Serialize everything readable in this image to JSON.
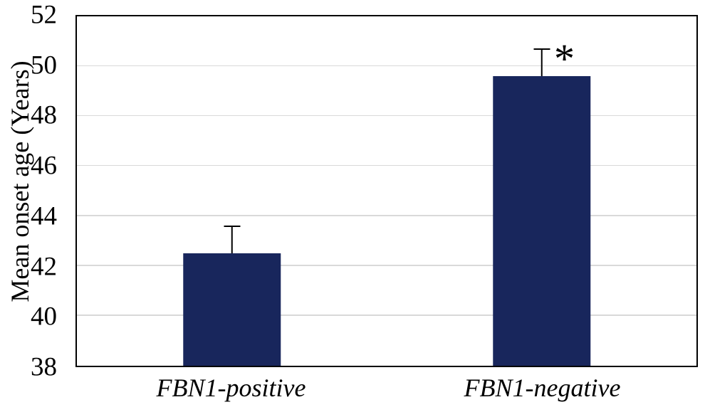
{
  "chart_data": {
    "type": "bar",
    "title": "",
    "ylabel": "Mean onset age (Years)",
    "xlabel": "",
    "categories": [
      "FBN1-positive",
      "FBN1-negative"
    ],
    "values": [
      42.5,
      49.6
    ],
    "errors_upper": [
      1.05,
      1.05
    ],
    "significance": {
      "bar_index": 1,
      "symbol": "*"
    },
    "ylim": [
      38,
      52
    ],
    "yticks": [
      38,
      40,
      42,
      44,
      46,
      48,
      50,
      52
    ],
    "grid": true,
    "gridlines_at": [
      40,
      42,
      44,
      46,
      48,
      50
    ],
    "legend": "none",
    "bar_color": "#18265c",
    "gridline_color": "#d9d9d9",
    "axis_color": "#000000",
    "bar_centers_pct": [
      25,
      75
    ],
    "bar_width_pct": 15.8
  }
}
